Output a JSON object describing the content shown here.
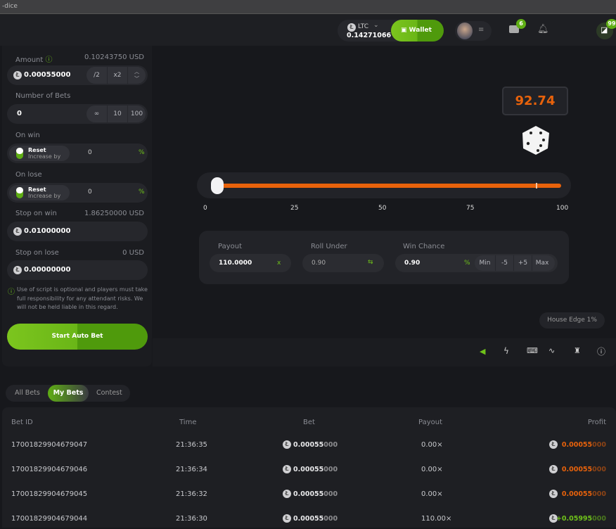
{
  "browser": {
    "title": "-dice"
  },
  "header": {
    "currency": "LTC",
    "balance": "0.14271066",
    "wallet": "Wallet",
    "mail_count": "6",
    "chat_count": "99"
  },
  "left": {
    "amount_label": "Amount",
    "amount_usd": "0.10243750 USD",
    "amount_value": "0.00055000",
    "half": "/2",
    "double": "x2",
    "bets_label": "Number of Bets",
    "bets_value": "0",
    "infinite": "∞",
    "ten": "10",
    "hundred": "100",
    "on_win_label": "On win",
    "on_lose_label": "On lose",
    "reset": "Reset",
    "increase_by": "Increase by",
    "on_win_value": "0",
    "on_lose_value": "0",
    "percent": "%",
    "stop_win_label": "Stop on win",
    "stop_win_usd": "1.86250000 USD",
    "stop_win_value": "0.01000000",
    "stop_lose_label": "Stop on lose",
    "stop_lose_usd": "0 USD",
    "stop_lose_value": "0.00000000",
    "disclaimer": "Use of script is optional and players must take full responsibility for any attendant risks. We will not be held liable in this regard.",
    "start": "Start Auto Bet"
  },
  "game": {
    "result": "92.74",
    "roll_under": 0.9,
    "result_value": 92.74,
    "ticks": [
      "0",
      "25",
      "50",
      "75",
      "100"
    ],
    "payout_label": "Payout",
    "payout_value": "110.0000",
    "payout_unit": "x",
    "roll_label": "Roll Under",
    "roll_value": "0.90",
    "chance_label": "Win Chance",
    "chance_value": "0.90",
    "chance_unit": "%",
    "min": "Min",
    "minus5": "-5",
    "plus5": "+5",
    "max": "Max",
    "house_edge": "House Edge 1%",
    "accent": "#e8620b",
    "brand": "#6fc21a"
  },
  "tabs": [
    "All Bets",
    "My Bets",
    "Contest"
  ],
  "table": {
    "headers": [
      "Bet ID",
      "Time",
      "Bet",
      "Payout",
      "Profit"
    ],
    "rows": [
      {
        "id": "17001829904679047",
        "time": "21:36:35",
        "bet_main": "0.00055",
        "bet_tail": "000",
        "payout": "0.00×",
        "profit_main": "0.00055",
        "profit_tail": "000",
        "win": false
      },
      {
        "id": "17001829904679046",
        "time": "21:36:34",
        "bet_main": "0.00055",
        "bet_tail": "000",
        "payout": "0.00×",
        "profit_main": "0.00055",
        "profit_tail": "000",
        "win": false
      },
      {
        "id": "17001829904679045",
        "time": "21:36:32",
        "bet_main": "0.00055",
        "bet_tail": "000",
        "payout": "0.00×",
        "profit_main": "0.00055",
        "profit_tail": "000",
        "win": false
      },
      {
        "id": "17001829904679044",
        "time": "21:36:30",
        "bet_main": "0.00055",
        "bet_tail": "000",
        "payout": "110.00×",
        "profit_main": "+0.05995",
        "profit_tail": "000",
        "win": true
      }
    ]
  }
}
